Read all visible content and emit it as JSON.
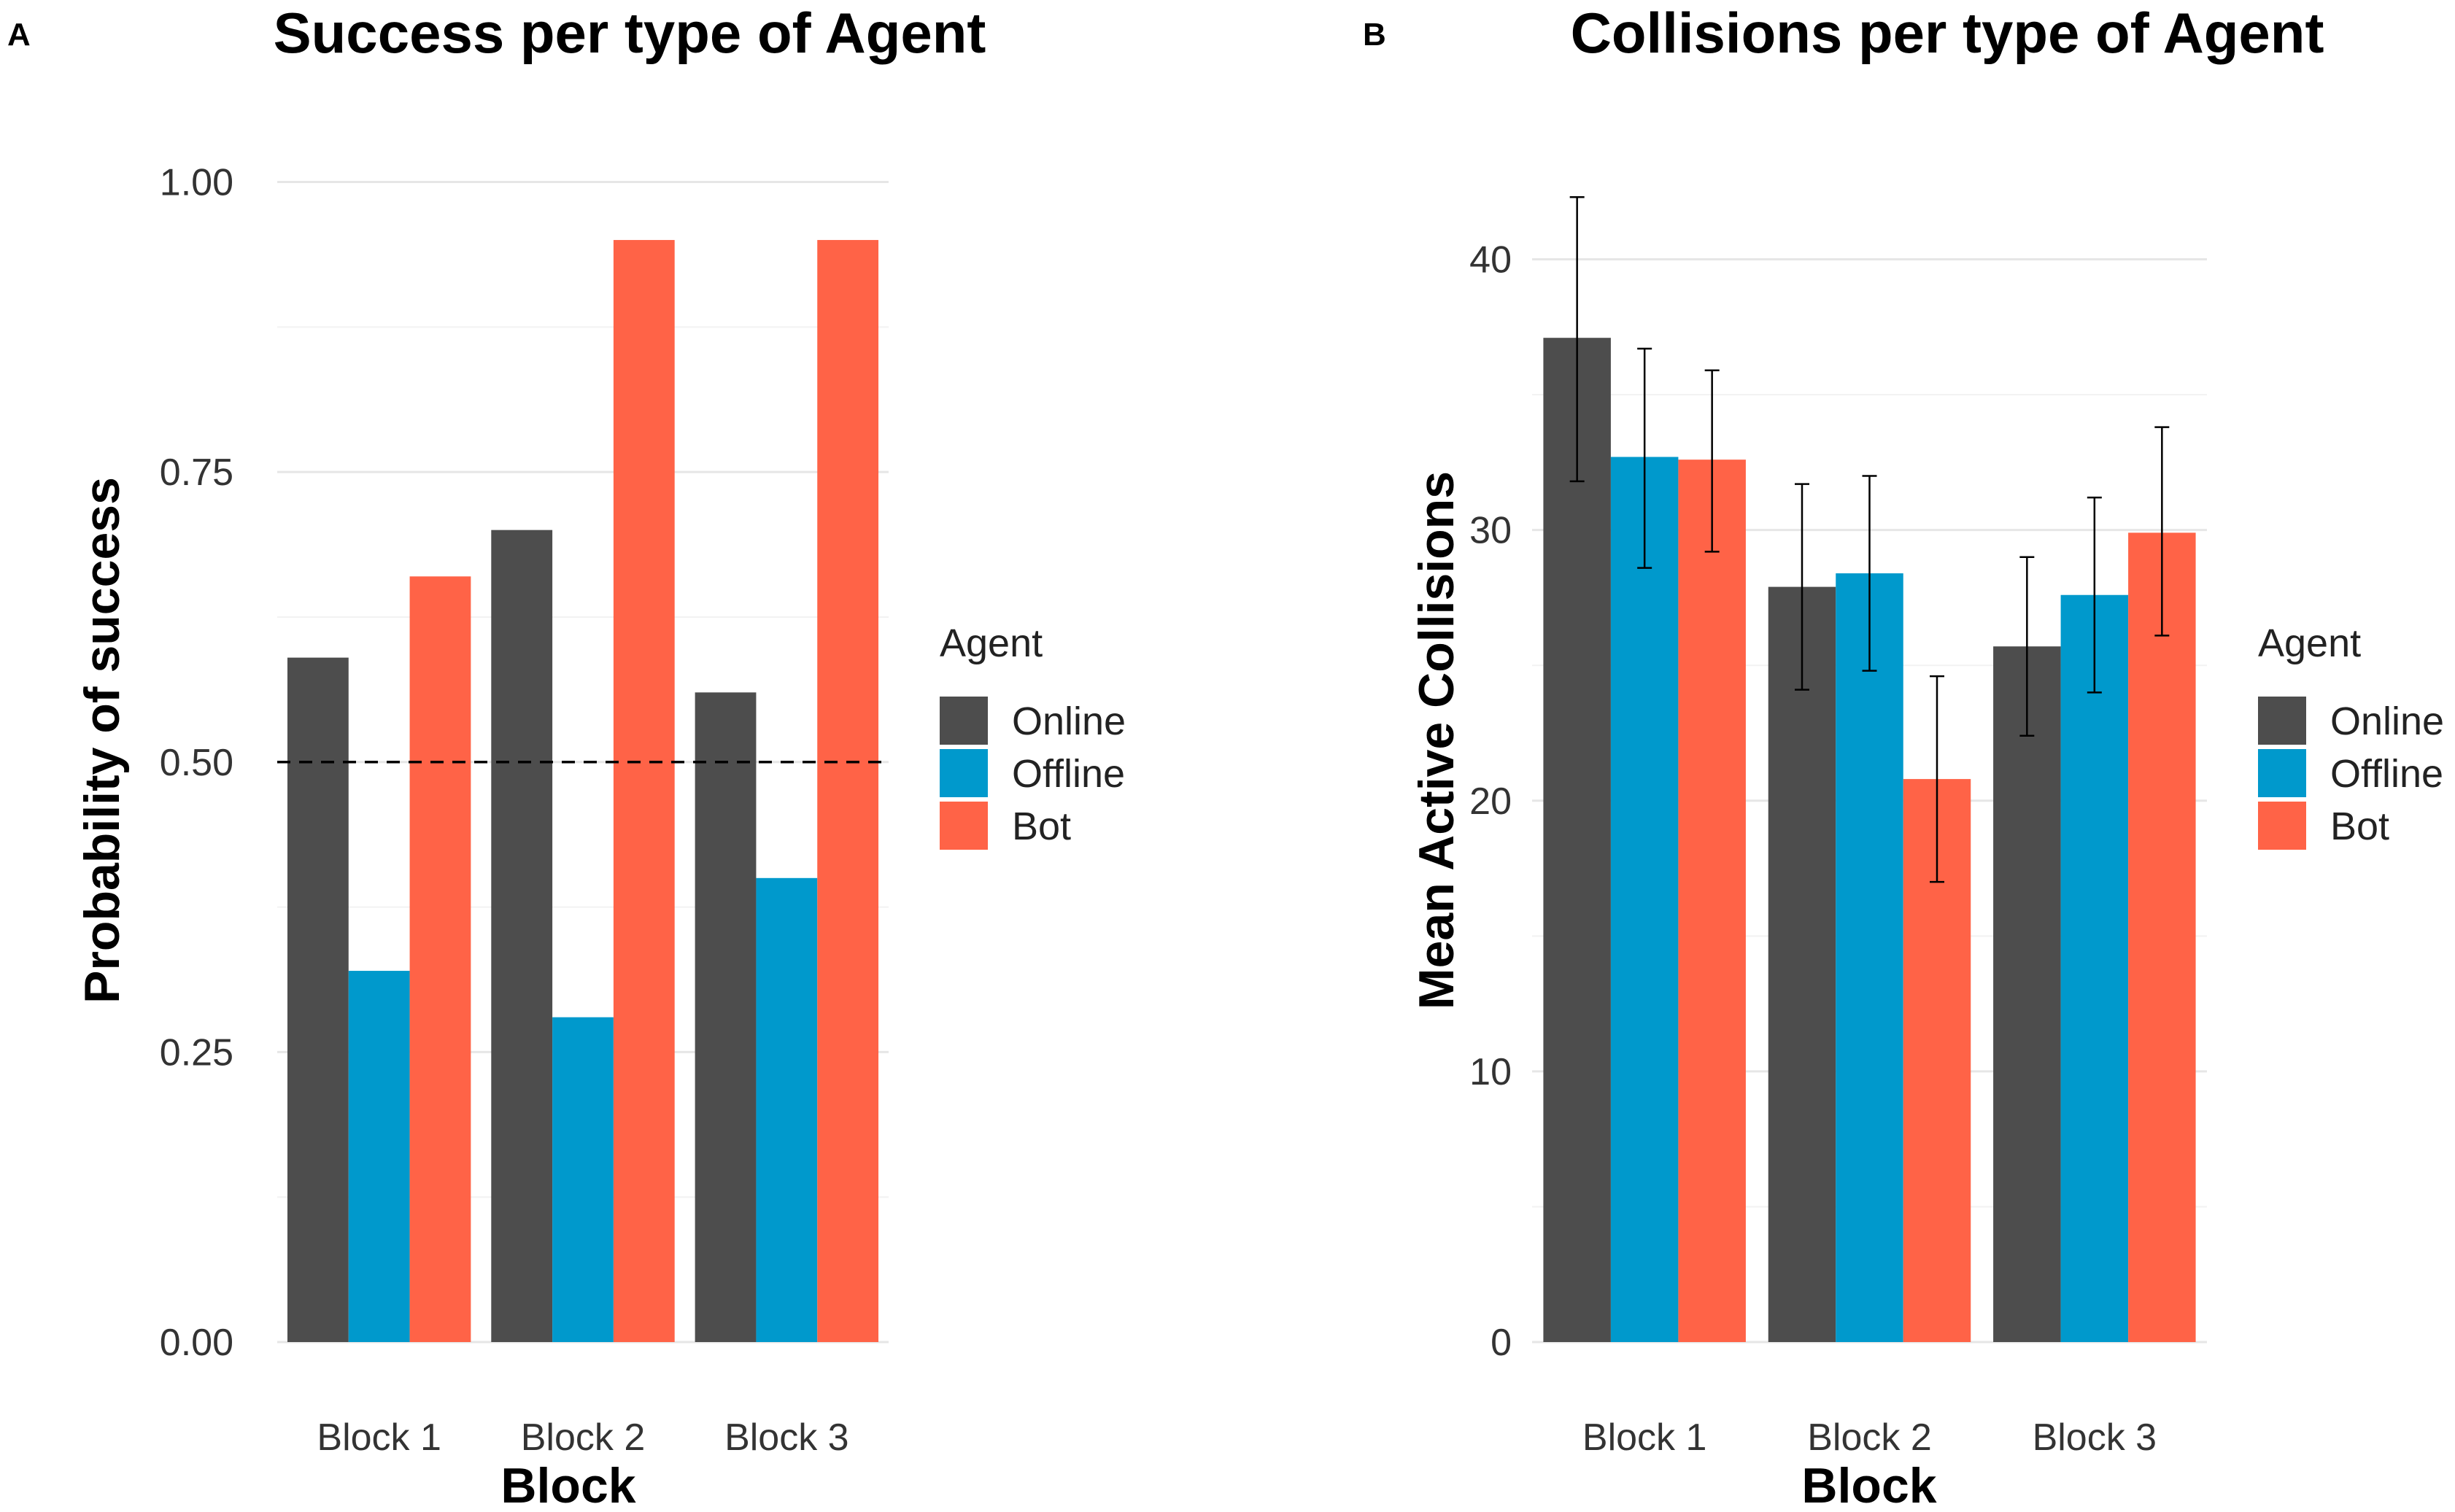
{
  "series_colors": {
    "Online": "#4d4d4d",
    "Offline": "#0099cc",
    "Bot": "#ff6347"
  },
  "chart_data": [
    {
      "panel": "A",
      "type": "bar",
      "title": "Success per type of Agent",
      "xlabel": "Block",
      "ylabel": "Probability of success",
      "categories": [
        "Block 1",
        "Block 2",
        "Block 3"
      ],
      "ylim": [
        0,
        1.05
      ],
      "yticks": [
        0,
        0.25,
        0.5,
        0.75,
        1.0
      ],
      "ytick_labels": [
        "0.00",
        "0.25",
        "0.50",
        "0.75",
        "1.00"
      ],
      "reference_line": 0.5,
      "legend_title": "Agent",
      "legend_position": "right",
      "series": [
        {
          "name": "Online",
          "values": [
            0.59,
            0.7,
            0.56
          ]
        },
        {
          "name": "Offline",
          "values": [
            0.32,
            0.28,
            0.4
          ]
        },
        {
          "name": "Bot",
          "values": [
            0.66,
            0.95,
            0.95
          ]
        }
      ]
    },
    {
      "panel": "B",
      "type": "bar",
      "title": "Collisions per type of Agent",
      "xlabel": "Block",
      "ylabel": "Mean Active Collisions",
      "categories": [
        "Block 1",
        "Block 2",
        "Block 3"
      ],
      "ylim": [
        0,
        45
      ],
      "yticks": [
        0,
        10,
        20,
        30,
        40
      ],
      "ytick_labels": [
        "0",
        "10",
        "20",
        "30",
        "40"
      ],
      "legend_title": "Agent",
      "legend_position": "right",
      "series": [
        {
          "name": "Online",
          "values": [
            37.1,
            27.9,
            25.7
          ],
          "err_low": [
            31.8,
            24.1,
            22.4
          ],
          "err_high": [
            42.3,
            31.7,
            29.0
          ]
        },
        {
          "name": "Offline",
          "values": [
            32.7,
            28.4,
            27.6
          ],
          "err_low": [
            28.6,
            24.8,
            24.0
          ],
          "err_high": [
            36.7,
            32.0,
            31.2
          ]
        },
        {
          "name": "Bot",
          "values": [
            32.6,
            20.8,
            29.9
          ],
          "err_low": [
            29.2,
            17.0,
            26.1
          ],
          "err_high": [
            35.9,
            24.6,
            33.8
          ]
        }
      ]
    }
  ]
}
